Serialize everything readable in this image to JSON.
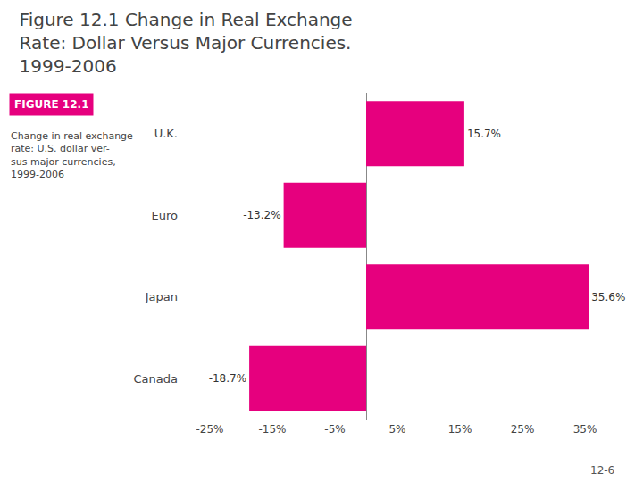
{
  "chart_data": {
    "type": "bar",
    "orientation": "horizontal",
    "title": "Figure 12.1 Change in Real Exchange\nRate: Dollar Versus Major Currencies.\n1999-2006",
    "categories": [
      "U.K.",
      "Euro",
      "Japan",
      "Canada"
    ],
    "values": [
      15.7,
      -13.2,
      35.6,
      -18.7
    ],
    "value_labels": [
      "15.7%",
      "-13.2%",
      "35.6%",
      "-18.7%"
    ],
    "data_labels": true,
    "color": "#e6007e",
    "xlim": [
      -30,
      40
    ],
    "xticks": [
      {
        "value": -25,
        "label": "-25%"
      },
      {
        "value": -15,
        "label": "-15%"
      },
      {
        "value": -5,
        "label": "-5%"
      },
      {
        "value": 5,
        "label": "5%"
      },
      {
        "value": 15,
        "label": "15%"
      },
      {
        "value": 25,
        "label": "25%"
      },
      {
        "value": 35,
        "label": "35%"
      }
    ],
    "grid": false,
    "annotations": [
      "FIGURE 12.1",
      "Change in real exchange\nrate: U.S. dollar ver-\nsus major currencies,\n1999-2006",
      "12-6"
    ]
  }
}
